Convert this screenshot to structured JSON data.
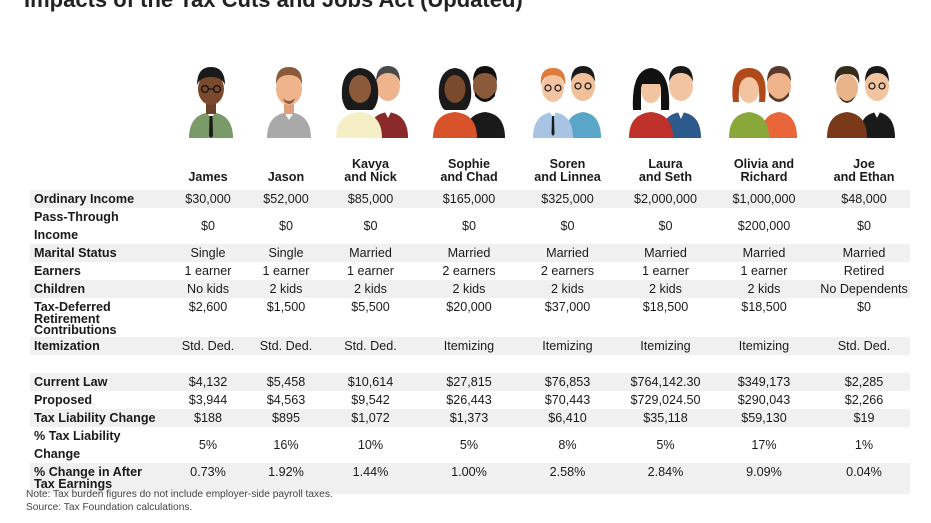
{
  "title": "Impacts of the Tax Cuts and Jobs Act (Updated)",
  "households": [
    {
      "name": "James",
      "icon": "man-icon"
    },
    {
      "name": "Jason",
      "icon": "man-icon"
    },
    {
      "name": "Kavya\nand Nick",
      "icon": "couple-icon"
    },
    {
      "name": "Sophie\nand Chad",
      "icon": "couple-icon"
    },
    {
      "name": "Soren\nand Linnea",
      "icon": "couple-icon"
    },
    {
      "name": "Laura\nand Seth",
      "icon": "couple-icon"
    },
    {
      "name": "Olivia and\nRichard",
      "icon": "couple-icon"
    },
    {
      "name": "Joe\nand Ethan",
      "icon": "couple-icon"
    }
  ],
  "rows_top": [
    {
      "label": "Ordinary Income",
      "values": [
        "$30,000",
        "$52,000",
        "$85,000",
        "$165,000",
        "$325,000",
        "$2,000,000",
        "$1,000,000",
        "$48,000"
      ]
    },
    {
      "label": "Pass-Through Income",
      "values": [
        "$0",
        "$0",
        "$0",
        "$0",
        "$0",
        "$0",
        "$200,000",
        "$0"
      ]
    },
    {
      "label": "Marital Status",
      "values": [
        "Single",
        "Single",
        "Married",
        "Married",
        "Married",
        "Married",
        "Married",
        "Married"
      ]
    },
    {
      "label": "Earners",
      "values": [
        "1 earner",
        "1 earner",
        "1 earner",
        "2 earners",
        "2 earners",
        "1 earner",
        "1 earner",
        "Retired"
      ]
    },
    {
      "label": "Children",
      "values": [
        "No kids",
        "2 kids",
        "2 kids",
        "2 kids",
        "2 kids",
        "2 kids",
        "2 kids",
        "No Dependents"
      ]
    },
    {
      "label": "Tax-Deferred Retirement Contributions",
      "values": [
        "$2,600",
        "$1,500",
        "$5,500",
        "$20,000",
        "$37,000",
        "$18,500",
        "$18,500",
        "$0"
      ]
    },
    {
      "label": "Itemization",
      "values": [
        "Std. Ded.",
        "Std. Ded.",
        "Std. Ded.",
        "Itemizing",
        "Itemizing",
        "Itemizing",
        "Itemizing",
        "Std. Ded."
      ]
    }
  ],
  "rows_bottom": [
    {
      "label": "Current Law",
      "values": [
        "$4,132",
        "$5,458",
        "$10,614",
        "$27,815",
        "$76,853",
        "$764,142.30",
        "$349,173",
        "$2,285"
      ]
    },
    {
      "label": "Proposed",
      "values": [
        "$3,944",
        "$4,563",
        "$9,542",
        "$26,443",
        "$70,443",
        "$729,024.50",
        "$290,043",
        "$2,266"
      ]
    },
    {
      "label": "Tax Liability Change",
      "values": [
        "$188",
        "$895",
        "$1,072",
        "$1,373",
        "$6,410",
        "$35,118",
        "$59,130",
        "$19"
      ]
    },
    {
      "label": "% Tax Liability Change",
      "values": [
        "5%",
        "16%",
        "10%",
        "5%",
        "8%",
        "5%",
        "17%",
        "1%"
      ]
    },
    {
      "label": "% Change in After Tax Earnings",
      "values": [
        "0.73%",
        "1.92%",
        "1.44%",
        "1.00%",
        "2.58%",
        "2.84%",
        "9.09%",
        "0.04%"
      ]
    }
  ],
  "notes": {
    "note": "Note: Tax burden figures do not include employer-side payroll taxes.",
    "source": "Source: Tax Foundation calculations."
  },
  "colors": {
    "row_shade": "#f0f0f0",
    "text": "#1a1a1a"
  }
}
